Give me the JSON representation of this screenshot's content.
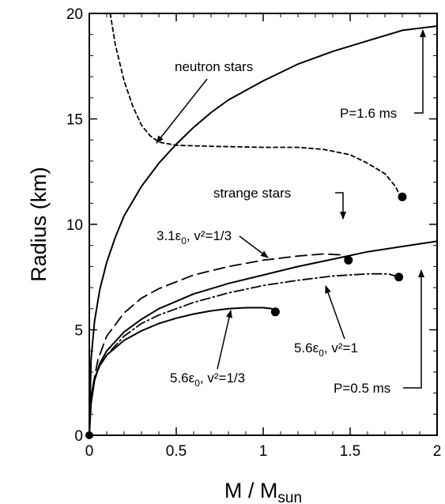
{
  "chart_data": {
    "type": "line",
    "xlabel": "M / M",
    "xlabel_sub": "sun",
    "ylabel": "Radius (km)",
    "xlim": [
      0,
      2
    ],
    "ylim": [
      0,
      20
    ],
    "x_ticks": [
      "0",
      "0.5",
      "1",
      "1.5",
      "2"
    ],
    "y_ticks": [
      "0",
      "5",
      "10",
      "15",
      "20"
    ],
    "grid": false,
    "series": [
      {
        "style": "dashed-fine",
        "points": [
          [
            0.12,
            20
          ],
          [
            0.15,
            18.5
          ],
          [
            0.2,
            16.8
          ],
          [
            0.25,
            15.6
          ],
          [
            0.3,
            14.7
          ],
          [
            0.35,
            14.2
          ],
          [
            0.4,
            13.9
          ],
          [
            0.5,
            13.75
          ],
          [
            0.7,
            13.7
          ],
          [
            1.0,
            13.65
          ],
          [
            1.2,
            13.65
          ],
          [
            1.35,
            13.55
          ],
          [
            1.5,
            13.3
          ],
          [
            1.6,
            12.9
          ],
          [
            1.7,
            12.4
          ],
          [
            1.76,
            11.8
          ],
          [
            1.79,
            11.3
          ]
        ],
        "end_marker": [
          1.8,
          11.3
        ]
      },
      {
        "style": "solid",
        "points": [
          [
            0,
            0
          ],
          [
            0.01,
            3.6
          ],
          [
            0.03,
            5.4
          ],
          [
            0.06,
            6.9
          ],
          [
            0.1,
            8.2
          ],
          [
            0.15,
            9.4
          ],
          [
            0.2,
            10.4
          ],
          [
            0.3,
            11.8
          ],
          [
            0.4,
            12.9
          ],
          [
            0.5,
            13.8
          ],
          [
            0.6,
            14.6
          ],
          [
            0.7,
            15.3
          ],
          [
            0.8,
            15.9
          ],
          [
            1.0,
            16.8
          ],
          [
            1.2,
            17.6
          ],
          [
            1.4,
            18.2
          ],
          [
            1.6,
            18.7
          ],
          [
            1.8,
            19.2
          ],
          [
            2.0,
            19.4
          ]
        ]
      },
      {
        "style": "long-dash",
        "points": [
          [
            0.02,
            2.3
          ],
          [
            0.05,
            3.6
          ],
          [
            0.1,
            4.7
          ],
          [
            0.2,
            5.8
          ],
          [
            0.3,
            6.5
          ],
          [
            0.4,
            6.95
          ],
          [
            0.6,
            7.6
          ],
          [
            0.8,
            8.0
          ],
          [
            1.0,
            8.3
          ],
          [
            1.2,
            8.5
          ],
          [
            1.35,
            8.6
          ],
          [
            1.45,
            8.55
          ],
          [
            1.49,
            8.3
          ]
        ],
        "end_marker": [
          1.49,
          8.3
        ]
      },
      {
        "style": "solid",
        "points": [
          [
            0,
            0
          ],
          [
            0.01,
            1.5
          ],
          [
            0.03,
            2.6
          ],
          [
            0.06,
            3.4
          ],
          [
            0.1,
            4.0
          ],
          [
            0.2,
            4.9
          ],
          [
            0.3,
            5.5
          ],
          [
            0.4,
            6.0
          ],
          [
            0.6,
            6.7
          ],
          [
            0.8,
            7.2
          ],
          [
            1.0,
            7.6
          ],
          [
            1.2,
            8.0
          ],
          [
            1.4,
            8.35
          ],
          [
            1.6,
            8.7
          ],
          [
            1.8,
            8.95
          ],
          [
            2.0,
            9.2
          ]
        ]
      },
      {
        "style": "dash-dot",
        "points": [
          [
            0.01,
            1.8
          ],
          [
            0.03,
            2.7
          ],
          [
            0.06,
            3.3
          ],
          [
            0.1,
            3.8
          ],
          [
            0.2,
            4.7
          ],
          [
            0.3,
            5.3
          ],
          [
            0.4,
            5.7
          ],
          [
            0.6,
            6.3
          ],
          [
            0.8,
            6.75
          ],
          [
            1.0,
            7.1
          ],
          [
            1.2,
            7.35
          ],
          [
            1.4,
            7.55
          ],
          [
            1.6,
            7.65
          ],
          [
            1.72,
            7.65
          ],
          [
            1.78,
            7.5
          ]
        ],
        "end_marker": [
          1.78,
          7.5
        ]
      },
      {
        "style": "solid",
        "points": [
          [
            0.01,
            1.8
          ],
          [
            0.03,
            2.7
          ],
          [
            0.06,
            3.3
          ],
          [
            0.1,
            3.8
          ],
          [
            0.2,
            4.5
          ],
          [
            0.3,
            4.95
          ],
          [
            0.4,
            5.3
          ],
          [
            0.5,
            5.55
          ],
          [
            0.6,
            5.75
          ],
          [
            0.7,
            5.9
          ],
          [
            0.8,
            6.0
          ],
          [
            0.9,
            6.05
          ],
          [
            1.0,
            6.05
          ],
          [
            1.05,
            6.0
          ],
          [
            1.07,
            5.85
          ]
        ],
        "end_marker": [
          1.07,
          5.85
        ]
      }
    ],
    "origin_marker": [
      0,
      0
    ],
    "annotations": {
      "neutron": "neutron stars",
      "strange": "strange stars",
      "p16": "P=1.6 ms",
      "p05": "P=0.5 ms",
      "eps31": "3.1ε",
      "eps31_sub": "0",
      "eps31_tail": ", v²=1/3",
      "eps56a": "5.6ε",
      "eps56a_sub": "0",
      "eps56a_tail": ", v²=1",
      "eps56b": "5.6ε",
      "eps56b_sub": "0",
      "eps56b_tail": ", v²=1/3"
    }
  }
}
